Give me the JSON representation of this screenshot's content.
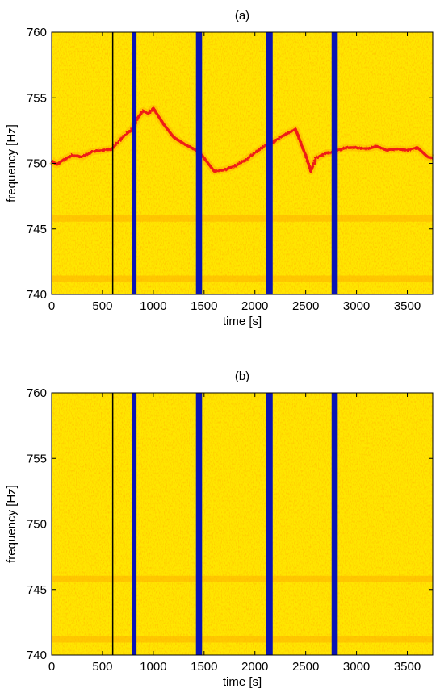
{
  "chart_data": [
    {
      "type": "heatmap",
      "title": "(a)",
      "xlabel": "time [s]",
      "ylabel": "frequency [Hz]",
      "xlim": [
        0,
        3750
      ],
      "ylim": [
        740,
        760
      ],
      "xticks": [
        0,
        500,
        1000,
        1500,
        2000,
        2500,
        3000,
        3500
      ],
      "yticks": [
        740,
        745,
        750,
        755,
        760
      ],
      "colormap": {
        "background": "#ffe600",
        "noise": "#ffb000",
        "line": "#ee1a12",
        "gap": "#0a14b4"
      },
      "gaps": [
        [
          595,
          605
        ],
        [
          790,
          835
        ],
        [
          1420,
          1480
        ],
        [
          2110,
          2175
        ],
        [
          2755,
          2815
        ]
      ],
      "constant_lines_hz": [
        745.8,
        741.2
      ],
      "tracked_line": {
        "x": [
          0,
          50,
          100,
          200,
          300,
          400,
          500,
          590,
          700,
          790,
          850,
          900,
          950,
          1000,
          1050,
          1100,
          1200,
          1300,
          1420,
          1480,
          1600,
          1700,
          1800,
          1900,
          2000,
          2110,
          2175,
          2250,
          2350,
          2400,
          2450,
          2500,
          2550,
          2600,
          2700,
          2755,
          2815,
          2900,
          3000,
          3100,
          3200,
          3300,
          3400,
          3500,
          3600,
          3700,
          3750
        ],
        "y": [
          750.2,
          749.9,
          750.2,
          750.6,
          750.5,
          750.9,
          751.0,
          751.1,
          752.0,
          752.6,
          753.5,
          754.0,
          753.8,
          754.2,
          753.6,
          753.0,
          752.0,
          751.5,
          751.0,
          750.6,
          749.4,
          749.5,
          749.8,
          750.2,
          750.8,
          751.4,
          751.6,
          752.0,
          752.4,
          752.6,
          751.6,
          750.6,
          749.4,
          750.4,
          750.8,
          750.8,
          751.0,
          751.2,
          751.2,
          751.1,
          751.3,
          751.0,
          751.1,
          751.0,
          751.2,
          750.5,
          750.4
        ]
      }
    },
    {
      "type": "heatmap",
      "title": "(b)",
      "xlabel": "time [s]",
      "ylabel": "frequency [Hz]",
      "xlim": [
        0,
        3750
      ],
      "ylim": [
        740,
        760
      ],
      "xticks": [
        0,
        500,
        1000,
        1500,
        2000,
        2500,
        3000,
        3500
      ],
      "yticks": [
        740,
        745,
        750,
        755,
        760
      ],
      "colormap": {
        "background": "#ffe600",
        "noise": "#ffb000",
        "line": "#ee1a12",
        "gap": "#0a14b4"
      },
      "gaps": [
        [
          595,
          605
        ],
        [
          790,
          835
        ],
        [
          1420,
          1480
        ],
        [
          2110,
          2175
        ],
        [
          2755,
          2815
        ]
      ],
      "constant_lines_hz": [
        745.8,
        741.2
      ],
      "tracked_line": null
    }
  ]
}
